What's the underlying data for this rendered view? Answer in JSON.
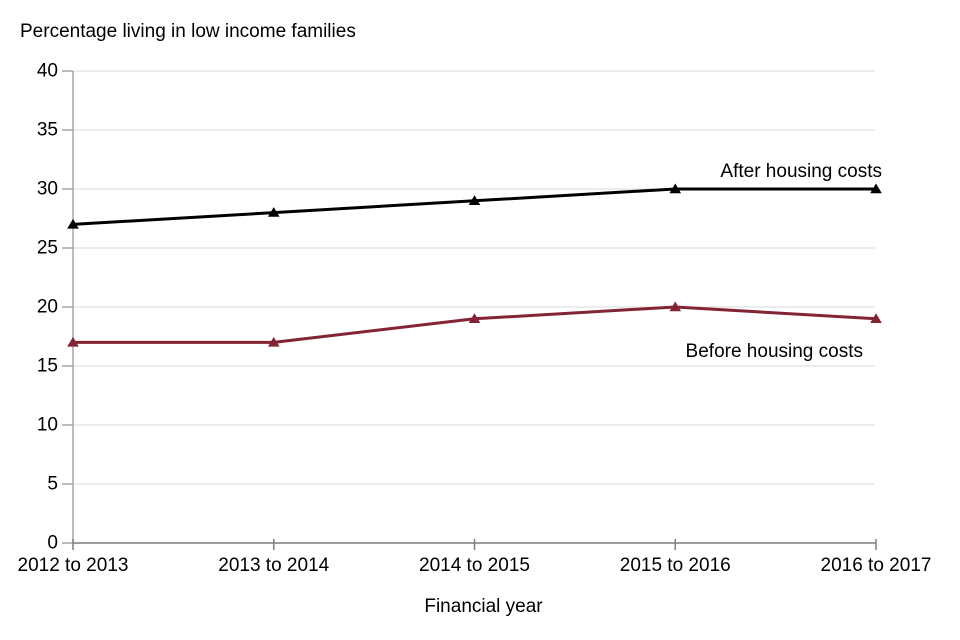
{
  "chart_data": {
    "type": "line",
    "title": "Percentage living in low income families",
    "xlabel": "Financial year",
    "ylabel": "",
    "categories": [
      "2012 to 2013",
      "2013 to 2014",
      "2014 to 2015",
      "2015 to 2016",
      "2016 to 2017"
    ],
    "series": [
      {
        "name": "After housing costs",
        "values": [
          27,
          28,
          29,
          30,
          30
        ],
        "color": "#000000"
      },
      {
        "name": "Before housing costs",
        "values": [
          17,
          17,
          19,
          20,
          19
        ],
        "color": "#822433"
      }
    ],
    "ylim": [
      0,
      40
    ],
    "ytick_step": 5,
    "grid": true,
    "marker": "triangle",
    "legend_position": "inline-annotations"
  },
  "colors": {
    "grid": "#d9d9d9",
    "y_axis": "#a6a6a6",
    "x_axis": "#7f7f7f",
    "text": "#000000",
    "background": "#ffffff"
  }
}
